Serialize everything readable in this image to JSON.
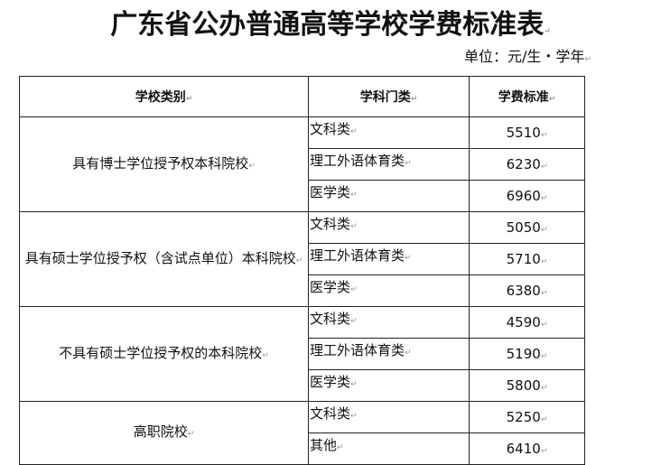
{
  "title": "广东省公办普通高等学校学费标准表",
  "unit": "单位：元/生・学年",
  "headers": {
    "category": "学校类别",
    "subject": "学科门类",
    "fee": "学费标准"
  },
  "groups": [
    {
      "category": "具有博士学位授予权本科院校",
      "rows": [
        {
          "subject": "文科类",
          "fee": "5510"
        },
        {
          "subject": "理工外语体育类",
          "fee": "6230"
        },
        {
          "subject": "医学类",
          "fee": "6960"
        }
      ]
    },
    {
      "category": "具有硕士学位授予权（含试点单位）本科院校",
      "rows": [
        {
          "subject": "文科类",
          "fee": "5050"
        },
        {
          "subject": "理工外语体育类",
          "fee": "5710"
        },
        {
          "subject": "医学类",
          "fee": "6380"
        }
      ]
    },
    {
      "category": "不具有硕士学位授予权的本科院校",
      "rows": [
        {
          "subject": "文科类",
          "fee": "4590"
        },
        {
          "subject": "理工外语体育类",
          "fee": "5190"
        },
        {
          "subject": "医学类",
          "fee": "5800"
        }
      ]
    },
    {
      "category": "高职院校",
      "rows": [
        {
          "subject": "文科类",
          "fee": "5250"
        },
        {
          "subject": "其他",
          "fee": "6410"
        }
      ]
    }
  ]
}
